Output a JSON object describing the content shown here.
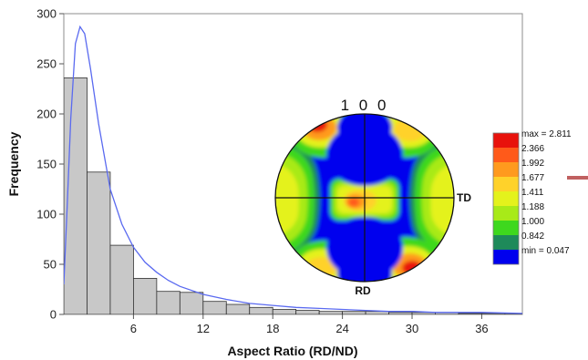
{
  "colors": {
    "bar_fill": "#c8c8c8",
    "bar_stroke": "#303030",
    "fit_line": "#5a6af0",
    "pole_low": "#0000ee",
    "accent_line": "#c06060"
  },
  "chart_data": [
    {
      "type": "bar",
      "title": "",
      "xlabel": "Aspect Ratio (RD/ND)",
      "ylabel": "Frequency",
      "xlim": [
        0,
        39.5
      ],
      "ylim": [
        0,
        300
      ],
      "xticks": [
        "6",
        "12",
        "18",
        "24",
        "30",
        "36"
      ],
      "yticks": [
        "0",
        "50",
        "100",
        "150",
        "200",
        "250",
        "300"
      ],
      "bin_width": 2,
      "bin_starts": [
        0,
        2,
        4,
        6,
        8,
        10,
        12,
        14,
        16,
        18,
        20,
        22,
        24,
        26,
        28,
        30,
        32,
        34,
        36,
        38
      ],
      "values": [
        236,
        142,
        69,
        36,
        23,
        22,
        13,
        10,
        7,
        5,
        4,
        3,
        3,
        3,
        2,
        2,
        2,
        1,
        1,
        1
      ],
      "fit_curve": {
        "x": [
          0.0,
          0.3,
          0.6,
          1.0,
          1.4,
          1.8,
          2.3,
          3.0,
          4.0,
          5.0,
          6.0,
          7.0,
          8.0,
          9.0,
          10.0,
          12.0,
          14.0,
          16.0,
          18.0,
          20.0,
          22.0,
          24.0,
          26.0,
          28.0,
          30.0,
          32.0,
          36.0,
          39.5
        ],
        "y": [
          30,
          110,
          195,
          270,
          287,
          280,
          245,
          190,
          125,
          90,
          67,
          52,
          42,
          34,
          28,
          20,
          15,
          11,
          9,
          7,
          6,
          5,
          4,
          3,
          3,
          2,
          2,
          1
        ]
      }
    },
    {
      "type": "heatmap",
      "title": "1 0 0",
      "direction_labels": {
        "right": "TD",
        "bottom": "RD"
      },
      "legend": {
        "labels": [
          "max = 2.811",
          "2.366",
          "1.992",
          "1.677",
          "1.411",
          "1.188",
          "1.000",
          "0.842",
          "min = 0.047"
        ],
        "colors": [
          "#e8120c",
          "#ff5a1a",
          "#ff9a1e",
          "#ffd22a",
          "#e4f21c",
          "#a8ea18",
          "#3ed81e",
          "#1e8a5a",
          "#0000ee"
        ]
      }
    }
  ]
}
